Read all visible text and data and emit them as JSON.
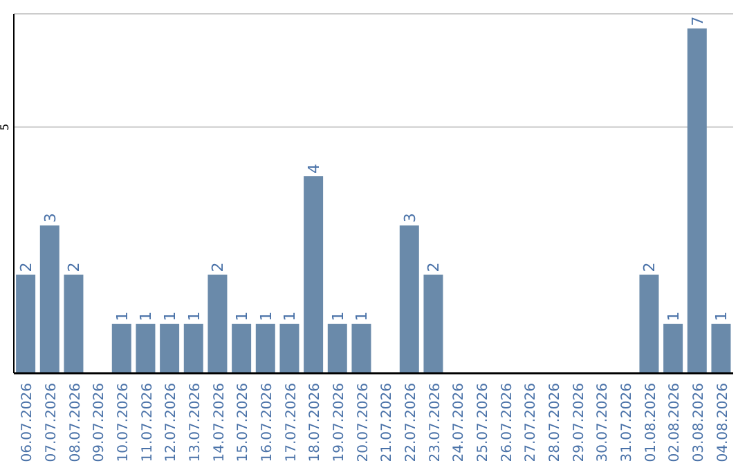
{
  "chart_data": {
    "type": "bar",
    "categories": [
      "06.07.2026",
      "07.07.2026",
      "08.07.2026",
      "09.07.2026",
      "10.07.2026",
      "11.07.2026",
      "12.07.2026",
      "13.07.2026",
      "14.07.2026",
      "15.07.2026",
      "16.07.2026",
      "17.07.2026",
      "18.07.2026",
      "19.07.2026",
      "20.07.2026",
      "21.07.2026",
      "22.07.2026",
      "23.07.2026",
      "24.07.2026",
      "25.07.2026",
      "26.07.2026",
      "27.07.2026",
      "28.07.2026",
      "29.07.2026",
      "30.07.2026",
      "31.07.2026",
      "01.08.2026",
      "02.08.2026",
      "03.08.2026",
      "04.08.2026"
    ],
    "values": [
      2,
      3,
      2,
      0,
      1,
      1,
      1,
      1,
      2,
      1,
      1,
      1,
      4,
      1,
      1,
      0,
      3,
      2,
      0,
      0,
      0,
      0,
      0,
      0,
      0,
      0,
      2,
      1,
      7,
      1
    ],
    "value_labels": [
      "2",
      "3",
      "2",
      null,
      "1",
      "1",
      "1",
      "1",
      "2",
      "1",
      "1",
      "1",
      "4",
      "1",
      "1",
      null,
      "3",
      "2",
      null,
      null,
      null,
      null,
      null,
      null,
      null,
      null,
      "2",
      "1",
      "7",
      "1"
    ],
    "color": "#6a8aaa",
    "ylim": [
      0,
      7.3
    ],
    "yticks": [
      5
    ],
    "grid": "y"
  }
}
